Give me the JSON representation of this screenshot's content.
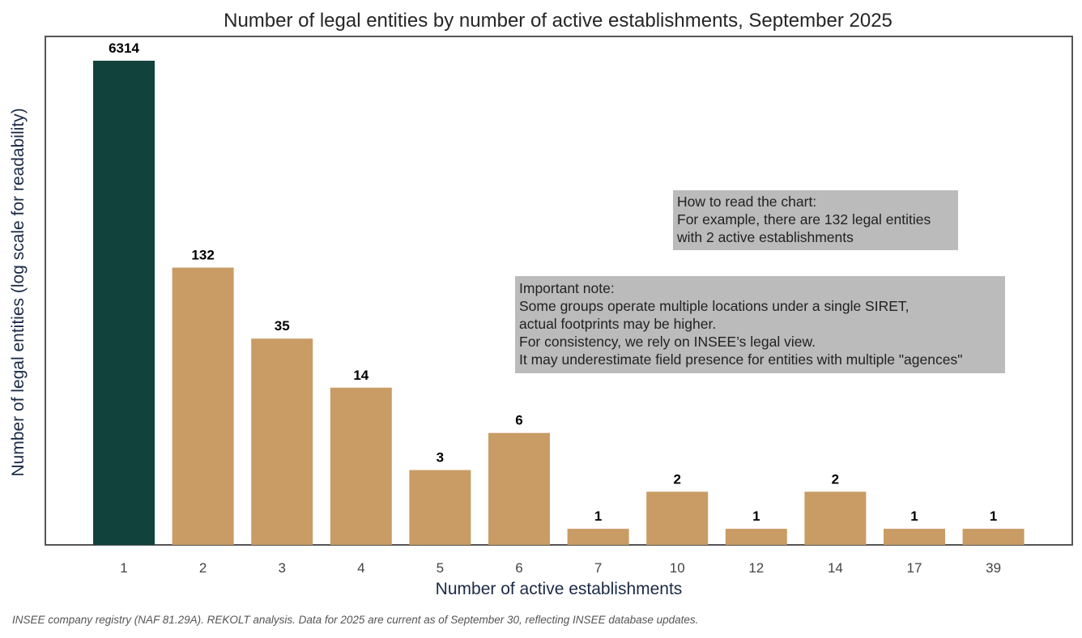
{
  "chart_data": {
    "type": "bar",
    "title": "Number of legal entities by number of active establishments, September 2025",
    "xlabel": "Number of active establishments",
    "ylabel": "Number of legal entities (log scale for readability)",
    "y_scale": "log",
    "categories": [
      "1",
      "2",
      "3",
      "4",
      "5",
      "6",
      "7",
      "10",
      "12",
      "14",
      "17",
      "39"
    ],
    "values": [
      6314,
      132,
      35,
      14,
      3,
      6,
      1,
      2,
      1,
      2,
      1,
      1
    ],
    "data_labels": [
      "6314",
      "132",
      "35",
      "14",
      "3",
      "6",
      "1",
      "2",
      "1",
      "2",
      "1",
      "1"
    ],
    "highlight_index": 0,
    "colors": {
      "highlight": "#11423c",
      "bar": "#c99c65",
      "note_box": "#bbbbbb",
      "frame": "#555555"
    },
    "grid": false,
    "annotations": [
      {
        "lines": [
          "How to read the chart:",
          "For example, there are 132 legal entities",
          "with 2 active establishments"
        ]
      },
      {
        "lines": [
          "Important note:",
          "Some groups operate multiple locations under a single SIRET,",
          "actual footprints may be higher.",
          "For consistency, we rely on INSEE’s legal view.",
          "It may underestimate field presence for entities with multiple \"agences\""
        ]
      }
    ]
  },
  "source_note": "INSEE company registry (NAF 81.29A). REKOLT analysis. Data for 2025 are current as of September 30, reflecting INSEE database updates."
}
